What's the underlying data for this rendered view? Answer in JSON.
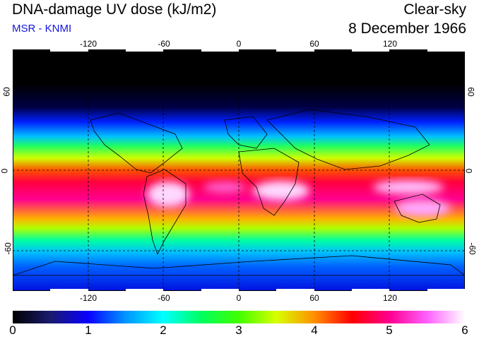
{
  "header": {
    "title": "DNA-damage UV dose (kJ/m2)",
    "source": "MSR - KNMI",
    "condition": "Clear-sky",
    "date": "8 December 1966"
  },
  "map": {
    "lon_ticks": [
      "-120",
      "-60",
      "0",
      "60",
      "120"
    ],
    "lat_ticks": [
      "60",
      "0",
      "-60"
    ],
    "projection": "equirectangular",
    "lon_range": [
      -180,
      180
    ],
    "lat_range": [
      -90,
      90
    ],
    "gridlines": "dashed"
  },
  "colorbar": {
    "labels": [
      "0",
      "1",
      "2",
      "3",
      "4",
      "5",
      "6"
    ],
    "min": 0,
    "max": 6,
    "colors": [
      "#000000",
      "#1a1a6e",
      "#0a00ff",
      "#0096ff",
      "#00ffff",
      "#00ff60",
      "#40ff00",
      "#d8ff00",
      "#ff9000",
      "#ff0000",
      "#ff0090",
      "#ff60ff",
      "#ffffff"
    ]
  }
}
